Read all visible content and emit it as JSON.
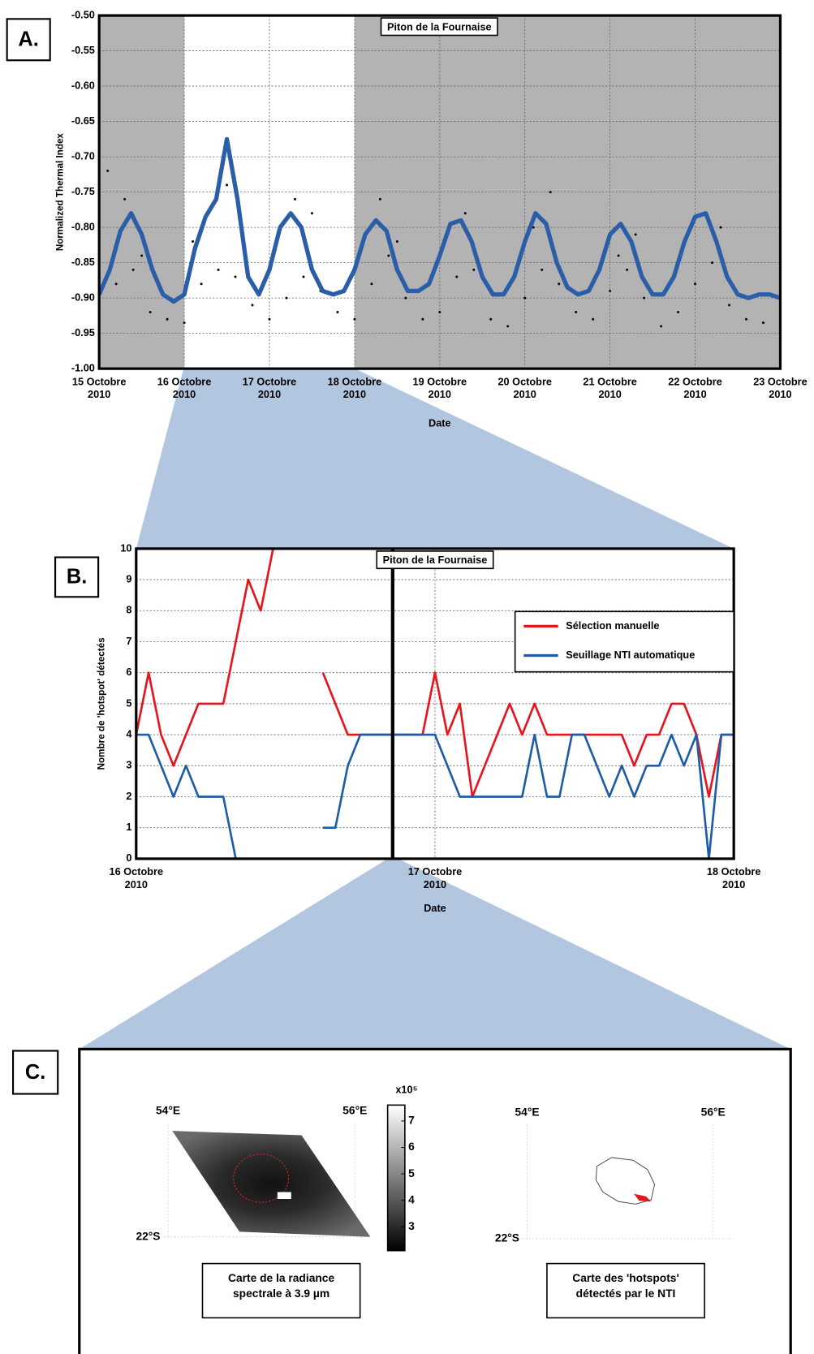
{
  "panel_labels": [
    "A.",
    "B.",
    "C."
  ],
  "chart_data": [
    {
      "type": "line",
      "title": "Piton de la Fournaise",
      "x_label": "Date",
      "y_label": "Normalized Thermal Index",
      "xlim": [
        0,
        8
      ],
      "xticks": [
        {
          "value": 0,
          "label": "15 Octobre 2010"
        },
        {
          "value": 1,
          "label": "16 Octobre 2010"
        },
        {
          "value": 2,
          "label": "17 Octobre 2010"
        },
        {
          "value": 3,
          "label": "18 Octobre 2010"
        },
        {
          "value": 4,
          "label": "19 Octobre 2010"
        },
        {
          "value": 5,
          "label": "20 Octobre 2010"
        },
        {
          "value": 6,
          "label": "21 Octobre 2010"
        },
        {
          "value": 7,
          "label": "22 Octobre 2010"
        },
        {
          "value": 8,
          "label": "23 Octobre 2010"
        }
      ],
      "ylim": [
        -1,
        -0.5
      ],
      "yticks": [
        {
          "value": -1,
          "label": "-1.00"
        },
        {
          "value": -0.95,
          "label": "-0.95"
        },
        {
          "value": -0.9,
          "label": "-0.90"
        },
        {
          "value": -0.85,
          "label": "-0.85"
        },
        {
          "value": -0.8,
          "label": "-0.80"
        },
        {
          "value": -0.75,
          "label": "-0.75"
        },
        {
          "value": -0.7,
          "label": "-0.70"
        },
        {
          "value": -0.65,
          "label": "-0.65"
        },
        {
          "value": -0.6,
          "label": "-0.60"
        },
        {
          "value": -0.55,
          "label": "-0.55"
        },
        {
          "value": -0.5,
          "label": "-0.50"
        }
      ],
      "grid": true,
      "background_color": "#b3b3b3",
      "highlight_range": [
        1,
        3
      ],
      "highlight_color": "#ffffff",
      "series": [
        {
          "type": "scatter",
          "color": "#000000",
          "x": [
            0,
            0.2,
            0.4,
            0.6,
            0.8,
            1.0,
            1.2,
            1.4,
            1.6,
            1.8,
            2.0,
            2.2,
            2.4,
            2.6,
            2.8,
            3.0,
            3.2,
            3.4,
            3.6,
            3.8,
            4.0,
            4.2,
            4.4,
            4.6,
            4.8,
            5.0,
            5.2,
            5.4,
            5.6,
            5.8,
            6.0,
            6.2,
            6.4,
            6.6,
            6.8,
            7.0,
            7.2,
            7.4,
            7.6,
            7.8,
            0.1,
            0.3,
            1.1,
            1.5,
            2.3,
            2.5,
            3.3,
            4.3,
            5.1,
            5.3,
            6.3,
            7.3,
            0.5,
            1.7,
            3.5,
            6.1
          ],
          "values": [
            -0.9,
            -0.88,
            -0.86,
            -0.92,
            -0.93,
            -0.935,
            -0.88,
            -0.86,
            -0.87,
            -0.91,
            -0.93,
            -0.9,
            -0.87,
            -0.89,
            -0.92,
            -0.93,
            -0.88,
            -0.84,
            -0.9,
            -0.93,
            -0.92,
            -0.87,
            -0.86,
            -0.93,
            -0.94,
            -0.9,
            -0.86,
            -0.88,
            -0.92,
            -0.93,
            -0.89,
            -0.86,
            -0.9,
            -0.94,
            -0.92,
            -0.88,
            -0.85,
            -0.91,
            -0.93,
            -0.935,
            -0.72,
            -0.76,
            -0.82,
            -0.74,
            -0.76,
            -0.78,
            -0.76,
            -0.78,
            -0.8,
            -0.75,
            -0.81,
            -0.8,
            -0.84,
            -0.82,
            -0.82,
            -0.84
          ]
        },
        {
          "type": "line",
          "color": "#2a5ea8",
          "x": [
            0,
            0.125,
            0.25,
            0.375,
            0.5,
            0.625,
            0.75,
            0.875,
            1,
            1.125,
            1.25,
            1.375,
            1.5,
            1.625,
            1.75,
            1.875,
            2,
            2.125,
            2.25,
            2.375,
            2.5,
            2.625,
            2.75,
            2.875,
            3,
            3.125,
            3.25,
            3.375,
            3.5,
            3.625,
            3.75,
            3.875,
            4,
            4.125,
            4.25,
            4.375,
            4.5,
            4.625,
            4.75,
            4.875,
            5,
            5.125,
            5.25,
            5.375,
            5.5,
            5.625,
            5.75,
            5.875,
            6,
            6.125,
            6.25,
            6.375,
            6.5,
            6.625,
            6.75,
            6.875,
            7,
            7.125,
            7.25,
            7.375,
            7.5,
            7.625,
            7.75,
            7.875,
            8
          ],
          "values": [
            -0.895,
            -0.86,
            -0.805,
            -0.78,
            -0.81,
            -0.86,
            -0.895,
            -0.905,
            -0.895,
            -0.83,
            -0.785,
            -0.76,
            -0.675,
            -0.76,
            -0.87,
            -0.895,
            -0.86,
            -0.8,
            -0.78,
            -0.8,
            -0.86,
            -0.89,
            -0.895,
            -0.89,
            -0.86,
            -0.81,
            -0.79,
            -0.805,
            -0.86,
            -0.89,
            -0.89,
            -0.88,
            -0.84,
            -0.795,
            -0.79,
            -0.82,
            -0.87,
            -0.895,
            -0.895,
            -0.87,
            -0.82,
            -0.78,
            -0.795,
            -0.85,
            -0.885,
            -0.895,
            -0.89,
            -0.86,
            -0.81,
            -0.795,
            -0.82,
            -0.87,
            -0.895,
            -0.895,
            -0.87,
            -0.82,
            -0.785,
            -0.78,
            -0.82,
            -0.87,
            -0.895,
            -0.9,
            -0.895,
            -0.895,
            -0.9
          ]
        }
      ]
    },
    {
      "type": "line",
      "title": "Piton de la Fournaise",
      "x_label": "Date",
      "y_label": "Nombre de 'hotspot' détectés",
      "xlim": [
        0,
        48
      ],
      "xticks": [
        {
          "value": 0,
          "label": "16 Octobre 2010"
        },
        {
          "value": 24,
          "label": "17 Octobre 2010"
        },
        {
          "value": 48,
          "label": "18 Octobre 2010"
        }
      ],
      "ylim": [
        0,
        10
      ],
      "yticks": [
        0,
        1,
        2,
        3,
        4,
        5,
        6,
        7,
        8,
        9,
        10
      ],
      "grid": true,
      "legend": "upper right",
      "marker_line_x": 20.6,
      "x": [
        0,
        1,
        2,
        3,
        4,
        5,
        6,
        7,
        8,
        9,
        10,
        11,
        12,
        13,
        14,
        15,
        16,
        17,
        18,
        19,
        20,
        21,
        22,
        23,
        24,
        25,
        26,
        27,
        28,
        29,
        30,
        31,
        32,
        33,
        34,
        35,
        36,
        37,
        38,
        39,
        40,
        41,
        42,
        43,
        44,
        45,
        46,
        47,
        48
      ],
      "series": [
        {
          "name": "Sélection manuelle",
          "color": "#e8141c",
          "values": [
            4,
            6,
            4,
            3,
            4,
            5,
            5,
            5,
            7,
            9,
            8,
            10,
            null,
            null,
            null,
            6,
            5,
            4,
            4,
            4,
            4,
            4,
            4,
            4,
            6,
            4,
            5,
            2,
            3,
            4,
            5,
            4,
            5,
            4,
            4,
            4,
            4,
            4,
            4,
            4,
            3,
            4,
            4,
            5,
            5,
            4,
            2,
            4,
            4
          ]
        },
        {
          "name": "Seuillage NTI automatique",
          "color": "#1f5ca8",
          "values": [
            4,
            4,
            3,
            2,
            3,
            2,
            2,
            2,
            0,
            null,
            null,
            null,
            null,
            null,
            null,
            1,
            1,
            3,
            4,
            4,
            4,
            4,
            4,
            4,
            4,
            3,
            2,
            2,
            2,
            2,
            2,
            2,
            4,
            2,
            2,
            4,
            4,
            3,
            2,
            3,
            2,
            3,
            3,
            4,
            3,
            4,
            0,
            4,
            4
          ]
        }
      ]
    }
  ],
  "panel_c": {
    "maps": [
      {
        "lon_labels": [
          "54°E",
          "56°E"
        ],
        "lat_label": "22°S",
        "caption": "Carte de la radiance spectrale à 3.9 µm"
      },
      {
        "lon_labels": [
          "54°E",
          "56°E"
        ],
        "lat_label": "22°S",
        "caption": "Carte des 'hotspots' détectés par le NTI"
      }
    ],
    "colorbar": {
      "label": "x10⁵",
      "range": [
        2.1,
        7.6
      ],
      "ticks": [
        3,
        4,
        5,
        6,
        7
      ]
    }
  }
}
